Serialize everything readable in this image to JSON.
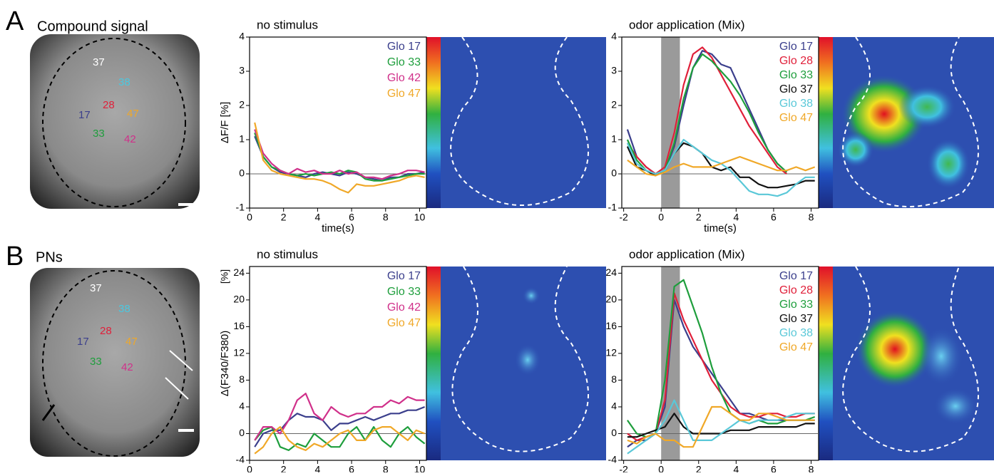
{
  "panels": [
    {
      "label": "A",
      "title": "Compound signal",
      "glomeruli": [
        "37",
        "38",
        "28",
        "47",
        "17",
        "33",
        "42"
      ]
    },
    {
      "label": "B",
      "title": "PNs",
      "glomeruli": [
        "37",
        "38",
        "28",
        "47",
        "17",
        "33",
        "42"
      ]
    }
  ],
  "chart_data": [
    {
      "type": "line",
      "title": "no stimulus",
      "ylabel": "ΔF/F [%]",
      "xlabel": "time(s)",
      "legend": "upper right",
      "xlim": [
        0,
        10.4
      ],
      "xticks": [
        0,
        2,
        4,
        6,
        8,
        10
      ],
      "ylim": [
        -1,
        4
      ],
      "yticks": [
        -1,
        0,
        1,
        2,
        3,
        4
      ],
      "x": [
        0.3,
        0.8,
        1.3,
        1.8,
        2.3,
        2.8,
        3.3,
        3.8,
        4.3,
        4.8,
        5.3,
        5.8,
        6.3,
        6.8,
        7.3,
        7.8,
        8.3,
        8.8,
        9.3,
        9.8,
        10.3
      ],
      "series": [
        {
          "name": "Glo 17",
          "color": "#3b3f8c",
          "values": [
            1.1,
            0.5,
            0.2,
            0.05,
            0,
            -0.05,
            -0.1,
            0,
            0.05,
            0,
            -0.05,
            0.05,
            0,
            -0.1,
            -0.15,
            -0.2,
            -0.1,
            -0.1,
            0,
            0,
            0.05
          ]
        },
        {
          "name": "Glo 33",
          "color": "#1e9e3c",
          "values": [
            1.2,
            0.5,
            0.2,
            0.1,
            0,
            -0.05,
            0,
            -0.05,
            0,
            0.05,
            0,
            0.1,
            0.05,
            -0.15,
            -0.2,
            -0.2,
            -0.15,
            -0.1,
            -0.05,
            0,
            0
          ]
        },
        {
          "name": "Glo 42",
          "color": "#d0308a",
          "values": [
            1.3,
            0.6,
            0.3,
            0.1,
            0,
            0.15,
            0.05,
            0.1,
            0,
            0,
            0.1,
            0,
            0.05,
            -0.1,
            -0.1,
            -0.15,
            -0.05,
            0,
            0.1,
            0.1,
            0.05
          ]
        },
        {
          "name": "Glo 47",
          "color": "#f0a828",
          "values": [
            1.5,
            0.4,
            0.1,
            0,
            -0.05,
            -0.1,
            -0.15,
            -0.15,
            -0.2,
            -0.3,
            -0.45,
            -0.55,
            -0.3,
            -0.35,
            -0.35,
            -0.3,
            -0.25,
            -0.2,
            -0.1,
            -0.05,
            -0.1
          ]
        }
      ]
    },
    {
      "type": "line",
      "title": "odor application (Mix)",
      "xlabel": "time(s)",
      "legend": "upper right",
      "shade": [
        0,
        1
      ],
      "xlim": [
        -2.1,
        8.4
      ],
      "xticks": [
        -2,
        0,
        2,
        4,
        6,
        8
      ],
      "ylim": [
        -1,
        4
      ],
      "yticks": [
        -1,
        0,
        1,
        2,
        3,
        4
      ],
      "x": [
        -1.8,
        -1.3,
        -0.8,
        -0.3,
        0.2,
        0.7,
        1.2,
        1.7,
        2.2,
        2.7,
        3.2,
        3.7,
        4.2,
        4.7,
        5.2,
        5.7,
        6.2,
        6.7,
        7.2,
        7.7,
        8.2
      ],
      "series": [
        {
          "name": "Glo 17",
          "color": "#3b3f8c",
          "values": [
            1.3,
            0.5,
            0.2,
            0,
            0.1,
            0.8,
            2.0,
            3.1,
            3.6,
            3.5,
            3.2,
            3.1,
            2.5,
            1.9,
            1.3,
            0.7,
            0.3,
            0.05,
            null,
            null,
            null
          ]
        },
        {
          "name": "Glo 28",
          "color": "#e0203a",
          "values": [
            0.9,
            0.5,
            0.2,
            0,
            0.2,
            1.2,
            2.6,
            3.5,
            3.7,
            3.4,
            2.9,
            2.4,
            1.9,
            1.4,
            1.0,
            0.6,
            0.2,
            0,
            null,
            null,
            null
          ]
        },
        {
          "name": "Glo 33",
          "color": "#1e9e3c",
          "values": [
            1.0,
            0.4,
            0.1,
            -0.05,
            0.1,
            0.9,
            2.2,
            3.1,
            3.5,
            3.3,
            3.0,
            2.7,
            2.3,
            1.8,
            1.2,
            0.7,
            0.3,
            0.05,
            null,
            null,
            null
          ]
        },
        {
          "name": "Glo 37",
          "color": "#111111",
          "values": [
            0.8,
            0.2,
            0.1,
            -0.05,
            0.1,
            0.6,
            0.9,
            0.8,
            0.6,
            0.2,
            0.1,
            0.2,
            -0.1,
            -0.1,
            -0.3,
            -0.4,
            -0.4,
            -0.35,
            -0.3,
            -0.2,
            -0.2
          ]
        },
        {
          "name": "Glo 38",
          "color": "#5ac8d8",
          "values": [
            0.9,
            0.3,
            0.1,
            0,
            0.1,
            0.6,
            1.0,
            0.8,
            0.6,
            0.4,
            0.3,
            0.1,
            -0.2,
            -0.5,
            -0.6,
            -0.6,
            -0.65,
            -0.55,
            -0.3,
            -0.1,
            -0.1
          ]
        },
        {
          "name": "Glo 47",
          "color": "#f0a828",
          "values": [
            0.4,
            0.2,
            0,
            -0.05,
            0.05,
            0.2,
            0.3,
            0.2,
            0.2,
            0.2,
            0.3,
            0.4,
            0.5,
            0.4,
            0.3,
            0.2,
            0.1,
            0.1,
            0.2,
            0.1,
            0.2
          ]
        }
      ]
    },
    {
      "type": "line",
      "title": "no stimulus",
      "ylabel": "Δ(F340/F380)",
      "ylabel_unit": "[%]",
      "xlabel": "time(s)",
      "legend": "upper right",
      "xlim": [
        0,
        10.4
      ],
      "xticks": [
        0,
        2,
        4,
        6,
        8,
        10
      ],
      "ylim": [
        -4,
        25
      ],
      "yticks": [
        -4,
        0,
        4,
        8,
        12,
        16,
        20,
        24
      ],
      "x": [
        0.3,
        0.8,
        1.3,
        1.8,
        2.3,
        2.8,
        3.3,
        3.8,
        4.3,
        4.8,
        5.3,
        5.8,
        6.3,
        6.8,
        7.3,
        7.8,
        8.3,
        8.8,
        9.3,
        9.8,
        10.3
      ],
      "series": [
        {
          "name": "Glo 17",
          "color": "#3b3f8c",
          "values": [
            -2,
            0,
            0.5,
            0.5,
            2,
            3,
            2.5,
            2.5,
            2,
            0.5,
            1.5,
            1.5,
            2,
            2.5,
            2,
            2.5,
            3,
            3,
            3.5,
            3.5,
            4
          ]
        },
        {
          "name": "Glo 33",
          "color": "#1e9e3c",
          "values": [
            -1,
            0.5,
            1,
            -2,
            -2.5,
            -1.5,
            -2,
            0,
            -1,
            -2,
            -2,
            0,
            1,
            -1,
            1,
            -1,
            -2,
            0,
            1,
            -0.5,
            -1.5
          ]
        },
        {
          "name": "Glo 42",
          "color": "#d0308a",
          "values": [
            -1,
            1,
            1,
            0,
            2,
            5,
            6,
            3,
            2,
            4,
            3,
            2.5,
            3,
            3,
            4,
            4,
            5,
            4.5,
            5.5,
            5,
            5
          ]
        },
        {
          "name": "Glo 47",
          "color": "#f0a828",
          "values": [
            -3,
            -2,
            0,
            1,
            -1,
            -2,
            -2.5,
            -1.5,
            -2,
            -1,
            0,
            0.5,
            -1,
            -1,
            0.5,
            1,
            1,
            0,
            -1,
            0.5,
            0
          ]
        }
      ]
    },
    {
      "type": "line",
      "title": "odor application (Mix)",
      "xlabel": "time(s)",
      "legend": "upper right",
      "shade": [
        0,
        1
      ],
      "xlim": [
        -2.1,
        8.4
      ],
      "xticks": [
        -2,
        0,
        2,
        4,
        6,
        8
      ],
      "ylim": [
        -4,
        25
      ],
      "yticks": [
        -4,
        0,
        4,
        8,
        12,
        16,
        20,
        24
      ],
      "x": [
        -1.8,
        -1.3,
        -0.8,
        -0.3,
        0.2,
        0.7,
        1.2,
        1.7,
        2.2,
        2.7,
        3.2,
        3.7,
        4.2,
        4.7,
        5.2,
        5.7,
        6.2,
        6.7,
        7.2,
        7.7,
        8.2
      ],
      "series": [
        {
          "name": "Glo 17",
          "color": "#3b3f8c",
          "values": [
            -2,
            -1,
            -1,
            0,
            4,
            20,
            16,
            13,
            11,
            9,
            7,
            5,
            3,
            3,
            2.5,
            2,
            2,
            2,
            2,
            2,
            2
          ]
        },
        {
          "name": "Glo 28",
          "color": "#e0203a",
          "values": [
            0,
            -1,
            -0.5,
            0,
            5,
            21,
            17,
            14,
            11,
            8,
            6,
            4,
            3,
            2.5,
            2.5,
            3,
            3,
            2.5,
            2.5,
            3,
            3
          ]
        },
        {
          "name": "Glo 33",
          "color": "#1e9e3c",
          "values": [
            2,
            0,
            -0.5,
            0,
            8,
            22,
            23,
            19,
            15,
            10,
            6,
            3,
            2,
            1.5,
            2,
            1.5,
            1.5,
            2,
            2,
            2,
            2.5
          ]
        },
        {
          "name": "Glo 37",
          "color": "#111111",
          "values": [
            -0.5,
            -0.5,
            0,
            0.5,
            1,
            3,
            1,
            0,
            0,
            0,
            0,
            0.5,
            0.5,
            0.5,
            1,
            1,
            1,
            1,
            1,
            1.5,
            1.5
          ]
        },
        {
          "name": "Glo 38",
          "color": "#5ac8d8",
          "values": [
            -3,
            -2,
            -1,
            0,
            2,
            5,
            2,
            -1,
            -1,
            -1,
            0,
            1,
            2,
            1.5,
            2,
            2,
            2,
            2.5,
            3,
            3,
            3
          ]
        },
        {
          "name": "Glo 47",
          "color": "#f0a828",
          "values": [
            -1,
            -1.5,
            -0.5,
            0,
            -1,
            -1,
            -2,
            -2,
            1,
            4,
            4,
            3,
            2,
            2,
            3,
            3,
            2.5,
            2,
            2,
            2,
            2
          ]
        }
      ]
    }
  ]
}
